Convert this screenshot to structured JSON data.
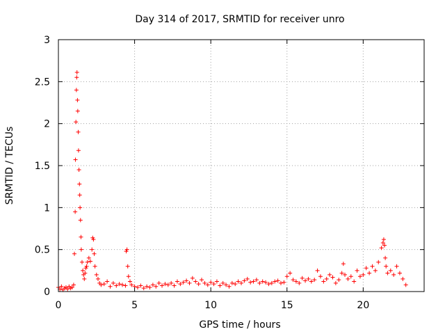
{
  "chart_data": {
    "type": "scatter",
    "title": "Day 314 of 2017, SRMTID for receiver unro",
    "xlabel": "GPS time / hours",
    "ylabel": "SRMTID / TECUs",
    "xlim": [
      0,
      24
    ],
    "ylim": [
      0,
      3
    ],
    "xticks": [
      0,
      5,
      10,
      15,
      20
    ],
    "yticks": [
      0,
      0.5,
      1,
      1.5,
      2,
      2.5,
      3
    ],
    "xtick_labels": [
      "0",
      "5",
      "10",
      "15",
      "20"
    ],
    "ytick_labels": [
      "0",
      "0.5",
      "1",
      "1.5",
      "2",
      "2.5",
      "3"
    ],
    "grid": true,
    "marker": "+",
    "color": "#ff0000",
    "series": [
      {
        "name": "SRMTID",
        "x": [
          0.0,
          0.1,
          0.2,
          0.3,
          0.4,
          0.5,
          0.6,
          0.7,
          0.8,
          0.9,
          1.0,
          1.05,
          1.1,
          1.12,
          1.15,
          1.18,
          1.2,
          1.22,
          1.25,
          1.27,
          1.3,
          1.32,
          1.35,
          1.38,
          1.4,
          1.42,
          1.45,
          1.48,
          1.5,
          1.55,
          1.6,
          1.65,
          1.7,
          1.75,
          1.8,
          1.85,
          1.9,
          2.0,
          2.1,
          2.2,
          2.25,
          2.3,
          2.35,
          2.4,
          2.5,
          2.6,
          2.7,
          2.8,
          3.0,
          3.2,
          3.4,
          3.6,
          3.8,
          4.0,
          4.2,
          4.4,
          4.45,
          4.5,
          4.55,
          4.6,
          4.7,
          4.8,
          5.0,
          5.2,
          5.4,
          5.6,
          5.8,
          6.0,
          6.2,
          6.4,
          6.6,
          6.8,
          7.0,
          7.2,
          7.4,
          7.6,
          7.8,
          8.0,
          8.2,
          8.4,
          8.6,
          8.8,
          9.0,
          9.2,
          9.4,
          9.6,
          9.8,
          10.0,
          10.2,
          10.4,
          10.6,
          10.8,
          11.0,
          11.2,
          11.4,
          11.6,
          11.8,
          12.0,
          12.2,
          12.4,
          12.6,
          12.8,
          13.0,
          13.2,
          13.4,
          13.6,
          13.8,
          14.0,
          14.2,
          14.4,
          14.6,
          14.8,
          15.0,
          15.2,
          15.4,
          15.6,
          15.8,
          16.0,
          16.2,
          16.4,
          16.6,
          16.8,
          17.0,
          17.2,
          17.4,
          17.6,
          17.8,
          18.0,
          18.2,
          18.4,
          18.6,
          18.7,
          18.8,
          19.0,
          19.2,
          19.4,
          19.6,
          19.8,
          20.0,
          20.2,
          20.4,
          20.6,
          20.8,
          21.0,
          21.2,
          21.3,
          21.35,
          21.4,
          21.45,
          21.5,
          21.6,
          21.8,
          22.0,
          22.2,
          22.4,
          22.6,
          22.8
        ],
        "y": [
          0.05,
          0.03,
          0.06,
          0.02,
          0.04,
          0.05,
          0.03,
          0.06,
          0.04,
          0.05,
          0.08,
          0.45,
          0.95,
          1.57,
          2.02,
          2.4,
          2.55,
          2.61,
          2.28,
          2.15,
          1.9,
          1.68,
          1.45,
          1.28,
          1.15,
          1.0,
          0.85,
          0.65,
          0.5,
          0.35,
          0.25,
          0.2,
          0.15,
          0.22,
          0.28,
          0.3,
          0.35,
          0.4,
          0.36,
          0.5,
          0.64,
          0.62,
          0.45,
          0.3,
          0.2,
          0.15,
          0.1,
          0.08,
          0.09,
          0.12,
          0.06,
          0.1,
          0.07,
          0.09,
          0.08,
          0.07,
          0.48,
          0.5,
          0.3,
          0.18,
          0.12,
          0.08,
          0.06,
          0.05,
          0.07,
          0.04,
          0.06,
          0.05,
          0.08,
          0.06,
          0.1,
          0.07,
          0.09,
          0.08,
          0.1,
          0.07,
          0.12,
          0.09,
          0.11,
          0.13,
          0.1,
          0.16,
          0.12,
          0.09,
          0.14,
          0.1,
          0.08,
          0.11,
          0.09,
          0.12,
          0.07,
          0.1,
          0.08,
          0.06,
          0.1,
          0.09,
          0.12,
          0.1,
          0.13,
          0.15,
          0.11,
          0.12,
          0.14,
          0.1,
          0.12,
          0.11,
          0.09,
          0.1,
          0.12,
          0.13,
          0.1,
          0.11,
          0.18,
          0.22,
          0.14,
          0.12,
          0.1,
          0.16,
          0.13,
          0.15,
          0.12,
          0.14,
          0.25,
          0.18,
          0.12,
          0.15,
          0.2,
          0.17,
          0.1,
          0.14,
          0.22,
          0.33,
          0.2,
          0.15,
          0.18,
          0.12,
          0.25,
          0.18,
          0.2,
          0.28,
          0.22,
          0.3,
          0.25,
          0.35,
          0.52,
          0.58,
          0.62,
          0.55,
          0.4,
          0.3,
          0.22,
          0.25,
          0.2,
          0.3,
          0.22,
          0.15,
          0.08
        ]
      }
    ]
  }
}
